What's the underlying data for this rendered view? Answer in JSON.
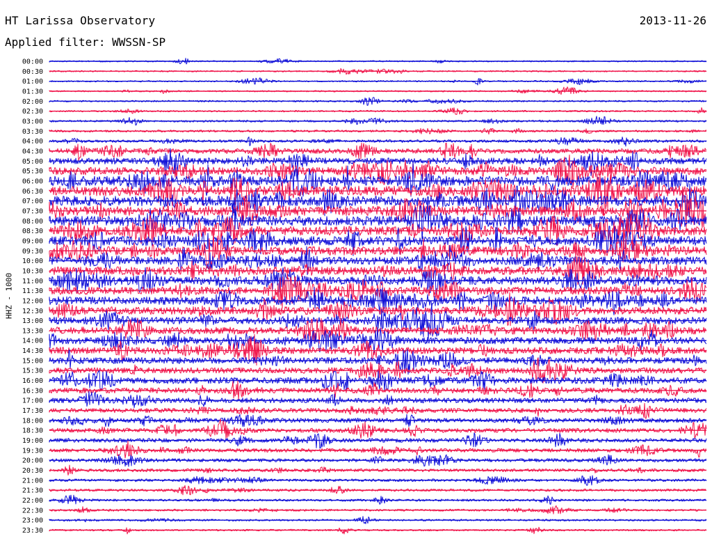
{
  "header": {
    "title": "HT Larissa Observatory",
    "date": "2013-11-26",
    "filter": "Applied filter: WWSSN-SP"
  },
  "axis": {
    "channel_label": "HHZ - 1000"
  },
  "colors": {
    "trace_a": "#1010d8",
    "trace_b": "#f0144a",
    "text": "#000000",
    "background": "#ffffff"
  },
  "chart_data": {
    "type": "line",
    "rows": [
      {
        "time": "00:00",
        "activity": 0.06
      },
      {
        "time": "00:30",
        "activity": 0.06
      },
      {
        "time": "01:00",
        "activity": 0.07
      },
      {
        "time": "01:30",
        "activity": 0.07
      },
      {
        "time": "02:00",
        "activity": 0.09
      },
      {
        "time": "02:30",
        "activity": 0.09
      },
      {
        "time": "03:00",
        "activity": 0.12
      },
      {
        "time": "03:30",
        "activity": 0.14
      },
      {
        "time": "04:00",
        "activity": 0.2
      },
      {
        "time": "04:30",
        "activity": 0.45
      },
      {
        "time": "05:00",
        "activity": 0.6
      },
      {
        "time": "05:30",
        "activity": 0.75
      },
      {
        "time": "06:00",
        "activity": 0.95
      },
      {
        "time": "06:30",
        "activity": 1.0
      },
      {
        "time": "07:00",
        "activity": 1.0
      },
      {
        "time": "07:30",
        "activity": 0.95
      },
      {
        "time": "08:00",
        "activity": 0.95
      },
      {
        "time": "08:30",
        "activity": 0.9
      },
      {
        "time": "09:00",
        "activity": 0.9
      },
      {
        "time": "09:30",
        "activity": 0.85
      },
      {
        "time": "10:00",
        "activity": 0.8
      },
      {
        "time": "10:30",
        "activity": 0.8
      },
      {
        "time": "11:00",
        "activity": 0.8
      },
      {
        "time": "11:30",
        "activity": 0.75
      },
      {
        "time": "12:00",
        "activity": 0.8
      },
      {
        "time": "12:30",
        "activity": 0.75
      },
      {
        "time": "13:00",
        "activity": 0.7
      },
      {
        "time": "13:30",
        "activity": 0.7
      },
      {
        "time": "14:00",
        "activity": 0.65
      },
      {
        "time": "14:30",
        "activity": 0.65
      },
      {
        "time": "15:00",
        "activity": 0.6
      },
      {
        "time": "15:30",
        "activity": 0.55
      },
      {
        "time": "16:00",
        "activity": 0.6
      },
      {
        "time": "16:30",
        "activity": 0.5
      },
      {
        "time": "17:00",
        "activity": 0.45
      },
      {
        "time": "17:30",
        "activity": 0.4
      },
      {
        "time": "18:00",
        "activity": 0.38
      },
      {
        "time": "18:30",
        "activity": 0.38
      },
      {
        "time": "19:00",
        "activity": 0.35
      },
      {
        "time": "19:30",
        "activity": 0.32
      },
      {
        "time": "20:00",
        "activity": 0.28
      },
      {
        "time": "20:30",
        "activity": 0.25
      },
      {
        "time": "21:00",
        "activity": 0.2
      },
      {
        "time": "21:30",
        "activity": 0.18
      },
      {
        "time": "22:00",
        "activity": 0.16
      },
      {
        "time": "22:30",
        "activity": 0.14
      },
      {
        "time": "23:00",
        "activity": 0.12
      },
      {
        "time": "23:30",
        "activity": 0.1
      }
    ]
  }
}
